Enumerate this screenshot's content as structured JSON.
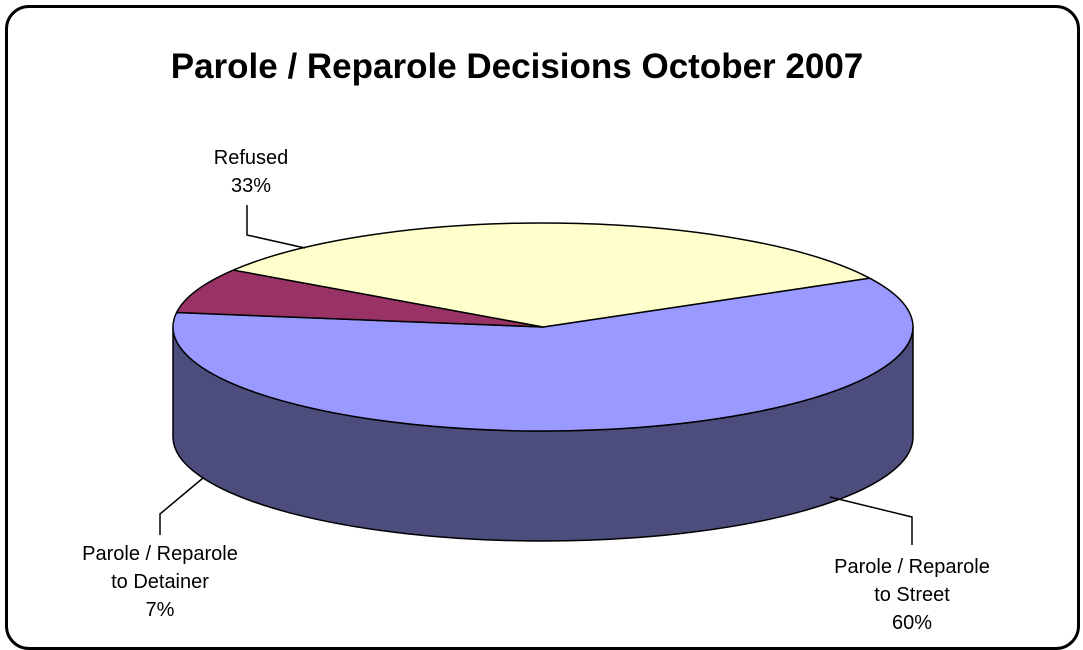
{
  "chart_data": {
    "type": "pie",
    "title": "Parole / Reparole Decisions October 2007",
    "legend": "none",
    "slices": [
      {
        "label_lines": [
          "Parole / Reparole",
          "to Street"
        ],
        "pct_label": "60%",
        "value": 60,
        "color": "#9999ff",
        "side_color": "#4c4c7d"
      },
      {
        "label_lines": [
          "Parole / Reparole",
          "to Detainer"
        ],
        "pct_label": "7%",
        "value": 7,
        "color": "#993366",
        "side_color": "#4d1a33"
      },
      {
        "label_lines": [
          "Refused"
        ],
        "pct_label": "33%",
        "value": 33,
        "color": "#ffffcc",
        "side_color": "#8a8a6e"
      }
    ]
  }
}
